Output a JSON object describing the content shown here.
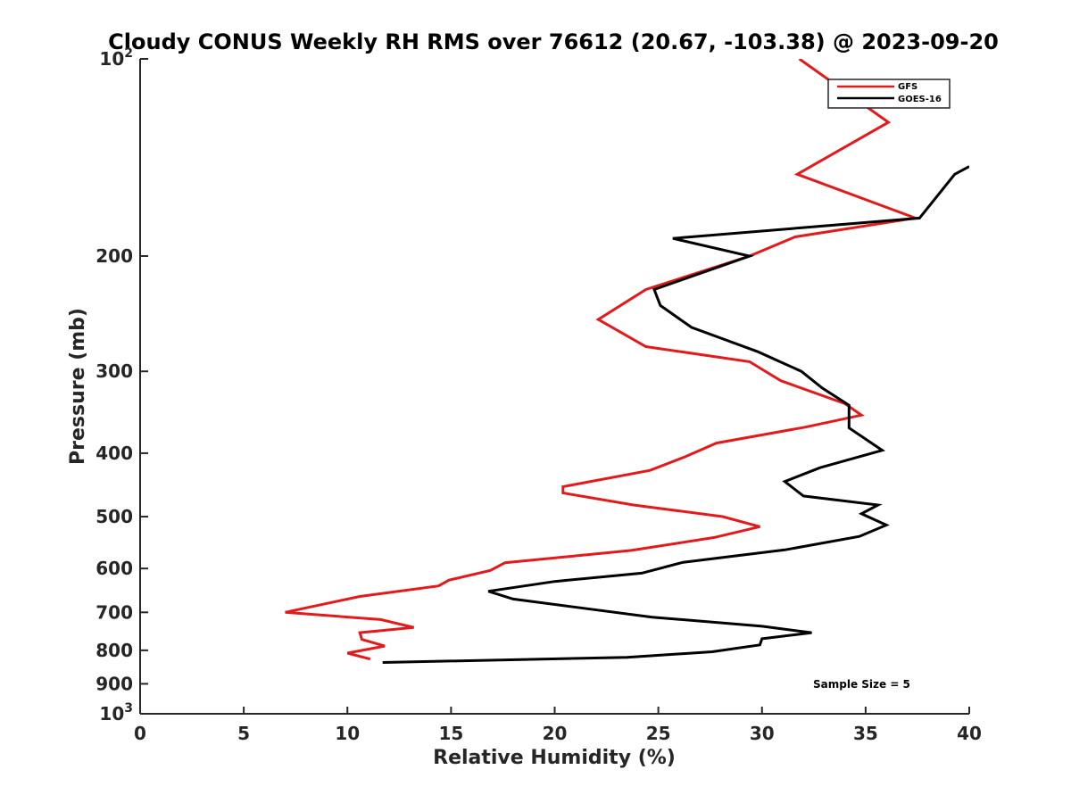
{
  "chart_data": {
    "type": "line",
    "title": "Cloudy CONUS Weekly RH RMS over 76612 (20.67, -103.38) @ 2023-09-20",
    "xlabel": "Relative Humidity (%)",
    "ylabel": "Pressure (mb)",
    "xlim": [
      0,
      40
    ],
    "ylim": [
      100,
      1000
    ],
    "yscale": "log",
    "yreversed": true,
    "x_ticks": [
      0,
      5,
      10,
      15,
      20,
      25,
      30,
      35,
      40
    ],
    "x_tick_labels": [
      "0",
      "5",
      "10",
      "15",
      "20",
      "25",
      "30",
      "35",
      "40"
    ],
    "y_ticks": [
      {
        "value": 100,
        "base": "10",
        "exp": "2"
      },
      {
        "value": 200,
        "label": "200"
      },
      {
        "value": 300,
        "label": "300"
      },
      {
        "value": 400,
        "label": "400"
      },
      {
        "value": 500,
        "label": "500"
      },
      {
        "value": 600,
        "label": "600"
      },
      {
        "value": 700,
        "label": "700"
      },
      {
        "value": 800,
        "label": "800"
      },
      {
        "value": 900,
        "label": "900"
      },
      {
        "value": 1000,
        "base": "10",
        "exp": "3"
      }
    ],
    "legend_position": "top-right",
    "annotation": "Sample Size = 5",
    "series": [
      {
        "name": "GFS",
        "color": "#e31a1c",
        "points": [
          [
            31.8,
            100
          ],
          [
            36.1,
            125
          ],
          [
            31.7,
            150
          ],
          [
            37.4,
            175
          ],
          [
            31.6,
            187
          ],
          [
            29.4,
            200
          ],
          [
            24.4,
            225
          ],
          [
            22.1,
            250
          ],
          [
            24.4,
            275
          ],
          [
            29.4,
            290
          ],
          [
            30.9,
            310
          ],
          [
            34.0,
            336
          ],
          [
            34.8,
            350
          ],
          [
            32.1,
            365
          ],
          [
            27.8,
            386
          ],
          [
            26.3,
            405
          ],
          [
            24.6,
            425
          ],
          [
            20.4,
            450
          ],
          [
            20.4,
            460
          ],
          [
            23.8,
            480
          ],
          [
            28.1,
            500
          ],
          [
            29.9,
            518
          ],
          [
            27.7,
            538
          ],
          [
            23.7,
            563
          ],
          [
            17.6,
            588
          ],
          [
            16.9,
            604
          ],
          [
            14.9,
            625
          ],
          [
            14.4,
            638
          ],
          [
            10.6,
            662
          ],
          [
            8.1,
            688
          ],
          [
            7.0,
            700
          ],
          [
            11.6,
            718
          ],
          [
            13.2,
            738
          ],
          [
            10.6,
            752
          ],
          [
            10.7,
            770
          ],
          [
            11.8,
            788
          ],
          [
            10.0,
            808
          ],
          [
            11.1,
            825
          ]
        ]
      },
      {
        "name": "GOES-16",
        "color": "#000000",
        "points": [
          [
            40.0,
            146
          ],
          [
            39.3,
            150
          ],
          [
            37.6,
            175
          ],
          [
            25.7,
            188
          ],
          [
            29.4,
            200
          ],
          [
            24.8,
            225
          ],
          [
            25.1,
            238
          ],
          [
            26.6,
            257
          ],
          [
            29.8,
            280
          ],
          [
            31.9,
            300
          ],
          [
            32.9,
            318
          ],
          [
            34.2,
            338
          ],
          [
            34.2,
            350
          ],
          [
            34.2,
            366
          ],
          [
            35.8,
            396
          ],
          [
            32.8,
            421
          ],
          [
            31.1,
            442
          ],
          [
            32.0,
            465
          ],
          [
            35.6,
            480
          ],
          [
            34.8,
            495
          ],
          [
            36.0,
            515
          ],
          [
            34.7,
            536
          ],
          [
            31.1,
            562
          ],
          [
            26.2,
            587
          ],
          [
            24.2,
            610
          ],
          [
            20.0,
            628
          ],
          [
            16.8,
            650
          ],
          [
            18.0,
            668
          ],
          [
            21.1,
            688
          ],
          [
            24.7,
            712
          ],
          [
            30.0,
            735
          ],
          [
            32.4,
            752
          ],
          [
            30.0,
            768
          ],
          [
            29.9,
            785
          ],
          [
            27.6,
            804
          ],
          [
            23.5,
            820
          ],
          [
            11.7,
            835
          ]
        ]
      }
    ]
  }
}
